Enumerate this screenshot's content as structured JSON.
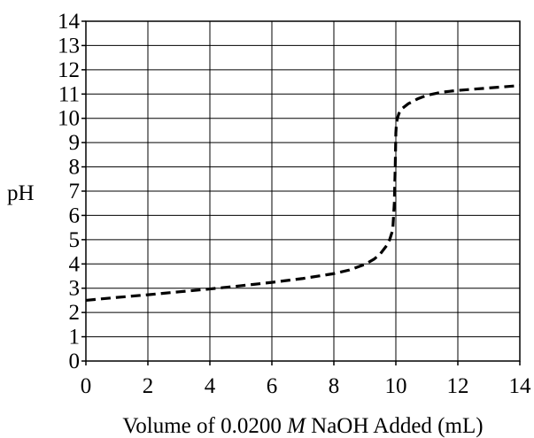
{
  "chart_data": {
    "type": "line",
    "title": "",
    "xlabel_parts": [
      "Volume of 0.0200 ",
      "M",
      " NaOH Added (mL)"
    ],
    "ylabel": "pH",
    "xlim": [
      0,
      14
    ],
    "ylim": [
      0,
      14
    ],
    "x_ticks": [
      "0",
      "2",
      "4",
      "6",
      "8",
      "10",
      "12",
      "14"
    ],
    "y_ticks": [
      "0",
      "1",
      "2",
      "3",
      "4",
      "5",
      "6",
      "7",
      "8",
      "9",
      "10",
      "11",
      "12",
      "13",
      "14"
    ],
    "grid": true,
    "series": [
      {
        "line_style": "dashed",
        "color": "#000000",
        "x": [
          0,
          1,
          2,
          3,
          4,
          5,
          6,
          7,
          8,
          8.5,
          9,
          9.3,
          9.5,
          9.7,
          9.8,
          9.9,
          9.95,
          9.98,
          10.0,
          10.02,
          10.05,
          10.1,
          10.2,
          10.4,
          10.7,
          11.0,
          11.5,
          12.0,
          12.5,
          13.0,
          13.5,
          14.0
        ],
        "y": [
          2.5,
          2.62,
          2.73,
          2.85,
          2.97,
          3.1,
          3.24,
          3.4,
          3.6,
          3.75,
          3.98,
          4.2,
          4.42,
          4.75,
          5.0,
          5.4,
          6.5,
          8.0,
          9.4,
          9.8,
          10.0,
          10.2,
          10.4,
          10.6,
          10.8,
          10.95,
          11.08,
          11.15,
          11.2,
          11.25,
          11.3,
          11.35
        ]
      }
    ]
  }
}
